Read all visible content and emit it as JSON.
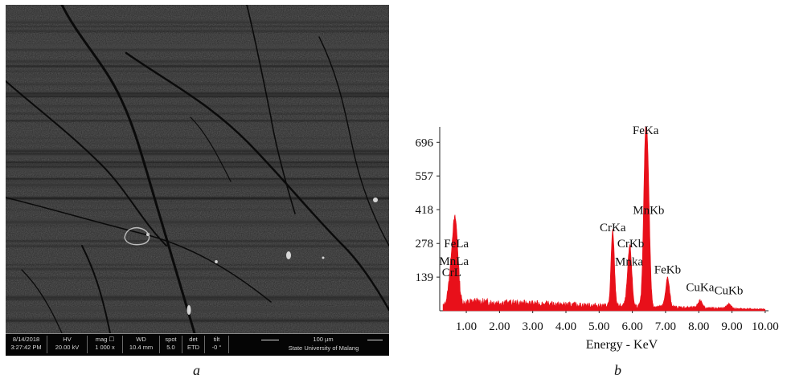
{
  "panels": {
    "a": {
      "caption": "a",
      "databar": {
        "date": "8/14/2018",
        "time": "3:27:42 PM",
        "hv_label": "HV",
        "hv_value": "20.00 kV",
        "mag_label": "mag ☐",
        "mag_value": "1 000 x",
        "wd_label": "WD",
        "wd_value": "10.4 mm",
        "spot_label": "spot",
        "spot_value": "5.0",
        "det_label": "det",
        "det_value": "ETD",
        "tilt_label": "tilt",
        "tilt_value": "-0 °",
        "scale": "100 µm",
        "organization": "State University of Malang"
      }
    },
    "b": {
      "caption": "b"
    }
  },
  "chart_data": {
    "type": "line",
    "title": "",
    "xlabel": "Energy - KeV",
    "ylabel": "",
    "xlim": [
      0.2,
      10.1
    ],
    "ylim": [
      0,
      760
    ],
    "x_ticks": [
      1.0,
      2.0,
      3.0,
      4.0,
      5.0,
      6.0,
      7.0,
      8.0,
      9.0,
      10.0
    ],
    "x_tick_labels": [
      "1.00",
      "2.00",
      "3.00",
      "4.00",
      "5.00",
      "6.00",
      "7.00",
      "8.00",
      "9.00",
      "10.00"
    ],
    "y_ticks": [
      139,
      278,
      418,
      557,
      696
    ],
    "y_tick_labels": [
      "139",
      "278",
      "418",
      "557",
      "696"
    ],
    "grid": false,
    "series_color": "#e8101a",
    "peaks": [
      {
        "energy": 0.55,
        "counts": 150,
        "width": 0.08
      },
      {
        "energy": 0.63,
        "counts": 110,
        "width": 0.06
      },
      {
        "energy": 0.7,
        "counts": 240,
        "width": 0.07
      },
      {
        "energy": 5.41,
        "counts": 310,
        "width": 0.05
      },
      {
        "energy": 5.9,
        "counts": 165,
        "width": 0.06
      },
      {
        "energy": 5.95,
        "counts": 110,
        "width": 0.05
      },
      {
        "energy": 6.4,
        "counts": 696,
        "width": 0.06
      },
      {
        "energy": 6.49,
        "counts": 300,
        "width": 0.05
      },
      {
        "energy": 7.06,
        "counts": 120,
        "width": 0.06
      },
      {
        "energy": 8.04,
        "counts": 30,
        "width": 0.07
      },
      {
        "energy": 8.9,
        "counts": 18,
        "width": 0.07
      }
    ],
    "background": [
      {
        "energy": 0.3,
        "counts": 20
      },
      {
        "energy": 1.2,
        "counts": 38
      },
      {
        "energy": 2.0,
        "counts": 34
      },
      {
        "energy": 3.0,
        "counts": 30
      },
      {
        "energy": 4.0,
        "counts": 26
      },
      {
        "energy": 5.0,
        "counts": 22
      },
      {
        "energy": 6.0,
        "counts": 20
      },
      {
        "energy": 7.0,
        "counts": 16
      },
      {
        "energy": 8.0,
        "counts": 12
      },
      {
        "energy": 9.0,
        "counts": 9
      },
      {
        "energy": 10.0,
        "counts": 6
      }
    ],
    "peak_labels": [
      {
        "text": "FeKa",
        "energy": 6.4,
        "counts": 730
      },
      {
        "text": "MnKb",
        "energy": 6.49,
        "counts": 400
      },
      {
        "text": "CrKa",
        "energy": 5.41,
        "counts": 328
      },
      {
        "text": "CrKb",
        "energy": 5.95,
        "counts": 262
      },
      {
        "text": "Mnka",
        "energy": 5.9,
        "counts": 188
      },
      {
        "text": "FeKb",
        "energy": 7.06,
        "counts": 155
      },
      {
        "text": "CuKa",
        "energy": 8.04,
        "counts": 82
      },
      {
        "text": "CuKb",
        "energy": 8.9,
        "counts": 68
      },
      {
        "text": "FeLa",
        "energy": 0.7,
        "counts": 262
      },
      {
        "text": "MnLa",
        "energy": 0.63,
        "counts": 190
      },
      {
        "text": "CrL",
        "energy": 0.56,
        "counts": 143
      }
    ]
  }
}
